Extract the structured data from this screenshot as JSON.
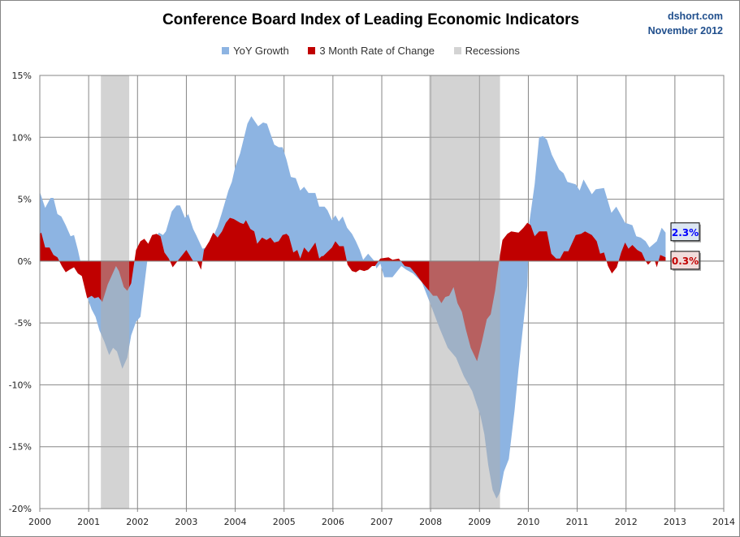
{
  "header": {
    "title": "Conference Board Index of Leading Economic Indicators",
    "source": "dshort.com",
    "date": "November 2012"
  },
  "colors": {
    "yoy": "#8db4e2",
    "rate3m": "#c00000",
    "recession": "#afafaf",
    "grid": "#868686"
  },
  "chart_data": {
    "type": "area",
    "title": "Conference Board Index of Leading Economic Indicators",
    "xlabel": "",
    "ylabel": "",
    "xlim": [
      2000,
      2014
    ],
    "ylim": [
      -20,
      15
    ],
    "grid": true,
    "legend": "top",
    "x_ticks": [
      "2000",
      "2001",
      "2002",
      "2003",
      "2004",
      "2005",
      "2006",
      "2007",
      "2008",
      "2009",
      "2010",
      "2011",
      "2012",
      "2013",
      "2014"
    ],
    "y_ticks": [
      "15%",
      "10%",
      "5%",
      "0%",
      "-5%",
      "-10%",
      "-15%",
      "-20%"
    ],
    "y_tick_values": [
      15,
      10,
      5,
      0,
      -5,
      -10,
      -15,
      -20
    ],
    "recessions": [
      [
        2001.25,
        2001.83
      ],
      [
        2007.97,
        2009.42
      ]
    ],
    "series": [
      {
        "name": "YoY Growth",
        "end_label": "2.3%",
        "points": [
          [
            2000.0,
            5.6
          ],
          [
            2000.11,
            4.3
          ],
          [
            2000.22,
            5.1
          ],
          [
            2000.28,
            5.1
          ],
          [
            2000.36,
            3.8
          ],
          [
            2000.44,
            3.6
          ],
          [
            2000.53,
            2.9
          ],
          [
            2000.63,
            2.0
          ],
          [
            2000.7,
            2.1
          ],
          [
            2000.78,
            0.9
          ],
          [
            2000.83,
            0
          ],
          [
            2000.97,
            -2.9
          ],
          [
            2001.06,
            -3.9
          ],
          [
            2001.14,
            -4.5
          ],
          [
            2001.22,
            -5.6
          ],
          [
            2001.32,
            -6.5
          ],
          [
            2001.42,
            -7.6
          ],
          [
            2001.5,
            -7.0
          ],
          [
            2001.58,
            -7.3
          ],
          [
            2001.69,
            -8.7
          ],
          [
            2001.79,
            -7.8
          ],
          [
            2001.87,
            -6.0
          ],
          [
            2001.97,
            -4.9
          ],
          [
            2002.06,
            -4.5
          ],
          [
            2002.1,
            -3.2
          ],
          [
            2002.2,
            0
          ],
          [
            2002.3,
            1.5
          ],
          [
            2002.44,
            2.3
          ],
          [
            2002.52,
            2.1
          ],
          [
            2002.58,
            2.4
          ],
          [
            2002.7,
            4.0
          ],
          [
            2002.8,
            4.5
          ],
          [
            2002.87,
            4.5
          ],
          [
            2002.97,
            3.5
          ],
          [
            2003.04,
            3.8
          ],
          [
            2003.14,
            2.6
          ],
          [
            2003.2,
            2.1
          ],
          [
            2003.33,
            1.0
          ],
          [
            2003.41,
            1.1
          ],
          [
            2003.53,
            1.8
          ],
          [
            2003.64,
            2.8
          ],
          [
            2003.72,
            3.8
          ],
          [
            2003.86,
            5.7
          ],
          [
            2003.93,
            6.4
          ],
          [
            2004.0,
            7.6
          ],
          [
            2004.1,
            8.7
          ],
          [
            2004.25,
            11.1
          ],
          [
            2004.33,
            11.7
          ],
          [
            2004.47,
            10.9
          ],
          [
            2004.57,
            11.2
          ],
          [
            2004.65,
            11.1
          ],
          [
            2004.72,
            10.3
          ],
          [
            2004.8,
            9.4
          ],
          [
            2004.89,
            9.2
          ],
          [
            2004.97,
            9.2
          ],
          [
            2005.05,
            8.2
          ],
          [
            2005.14,
            6.8
          ],
          [
            2005.24,
            6.7
          ],
          [
            2005.33,
            5.7
          ],
          [
            2005.41,
            6.0
          ],
          [
            2005.5,
            5.5
          ],
          [
            2005.64,
            5.5
          ],
          [
            2005.72,
            4.4
          ],
          [
            2005.83,
            4.4
          ],
          [
            2005.89,
            4.1
          ],
          [
            2005.98,
            3.3
          ],
          [
            2006.05,
            3.7
          ],
          [
            2006.12,
            3.2
          ],
          [
            2006.2,
            3.6
          ],
          [
            2006.29,
            2.7
          ],
          [
            2006.39,
            2.2
          ],
          [
            2006.47,
            1.6
          ],
          [
            2006.55,
            0.9
          ],
          [
            2006.62,
            0.1
          ],
          [
            2006.72,
            0.6
          ],
          [
            2006.85,
            0
          ],
          [
            2006.89,
            -0.6
          ],
          [
            2006.97,
            -0.2
          ],
          [
            2007.05,
            -1.3
          ],
          [
            2007.22,
            -1.3
          ],
          [
            2007.4,
            -0.4
          ],
          [
            2007.5,
            -0.7
          ],
          [
            2007.64,
            -1.0
          ],
          [
            2007.82,
            -1.7
          ],
          [
            2007.97,
            -3.2
          ],
          [
            2008.19,
            -5.5
          ],
          [
            2008.35,
            -7.0
          ],
          [
            2008.52,
            -7.8
          ],
          [
            2008.68,
            -9.3
          ],
          [
            2008.85,
            -10.5
          ],
          [
            2009.02,
            -12.5
          ],
          [
            2009.1,
            -14.0
          ],
          [
            2009.18,
            -16.5
          ],
          [
            2009.27,
            -18.5
          ],
          [
            2009.35,
            -19.2
          ],
          [
            2009.42,
            -18.7
          ],
          [
            2009.5,
            -17.0
          ],
          [
            2009.6,
            -16.0
          ],
          [
            2009.72,
            -12.0
          ],
          [
            2009.8,
            -8.7
          ],
          [
            2009.9,
            -5.0
          ],
          [
            2009.98,
            -2.0
          ],
          [
            2010.02,
            3.1
          ],
          [
            2010.13,
            6.2
          ],
          [
            2010.22,
            10.0
          ],
          [
            2010.3,
            10.1
          ],
          [
            2010.38,
            9.8
          ],
          [
            2010.48,
            8.6
          ],
          [
            2010.63,
            7.4
          ],
          [
            2010.72,
            7.1
          ],
          [
            2010.8,
            6.4
          ],
          [
            2010.97,
            6.2
          ],
          [
            2011.05,
            5.7
          ],
          [
            2011.13,
            6.6
          ],
          [
            2011.3,
            5.4
          ],
          [
            2011.38,
            5.8
          ],
          [
            2011.55,
            5.9
          ],
          [
            2011.7,
            3.9
          ],
          [
            2011.8,
            4.4
          ],
          [
            2011.98,
            3.1
          ],
          [
            2012.13,
            2.9
          ],
          [
            2012.21,
            2.0
          ],
          [
            2012.3,
            1.9
          ],
          [
            2012.4,
            1.6
          ],
          [
            2012.48,
            1.1
          ],
          [
            2012.63,
            1.6
          ],
          [
            2012.73,
            2.7
          ],
          [
            2012.81,
            2.3
          ]
        ]
      },
      {
        "name": "3 Month Rate of Change",
        "end_label": "0.3%",
        "points": [
          [
            2000.0,
            2.2
          ],
          [
            2000.03,
            2.3
          ],
          [
            2000.11,
            1.1
          ],
          [
            2000.2,
            1.1
          ],
          [
            2000.28,
            0.5
          ],
          [
            2000.36,
            0.3
          ],
          [
            2000.45,
            -0.4
          ],
          [
            2000.53,
            -0.9
          ],
          [
            2000.61,
            -0.7
          ],
          [
            2000.7,
            -0.5
          ],
          [
            2000.78,
            -1.0
          ],
          [
            2000.86,
            -1.2
          ],
          [
            2000.97,
            -3.0
          ],
          [
            2001.06,
            -2.8
          ],
          [
            2001.12,
            -3.0
          ],
          [
            2001.2,
            -2.9
          ],
          [
            2001.28,
            -3.3
          ],
          [
            2001.39,
            -1.9
          ],
          [
            2001.56,
            -0.4
          ],
          [
            2001.62,
            -0.8
          ],
          [
            2001.72,
            -2.1
          ],
          [
            2001.79,
            -2.4
          ],
          [
            2001.87,
            -1.8
          ],
          [
            2001.97,
            0.9
          ],
          [
            2002.06,
            1.6
          ],
          [
            2002.14,
            1.8
          ],
          [
            2002.22,
            1.4
          ],
          [
            2002.3,
            2.1
          ],
          [
            2002.39,
            2.2
          ],
          [
            2002.47,
            2.0
          ],
          [
            2002.55,
            0.7
          ],
          [
            2002.64,
            0.2
          ],
          [
            2002.72,
            -0.5
          ],
          [
            2002.8,
            -0.1
          ],
          [
            2002.92,
            0.5
          ],
          [
            2003.0,
            0.9
          ],
          [
            2003.14,
            0
          ],
          [
            2003.22,
            0
          ],
          [
            2003.3,
            -0.7
          ],
          [
            2003.36,
            0.9
          ],
          [
            2003.47,
            1.6
          ],
          [
            2003.55,
            2.3
          ],
          [
            2003.64,
            1.9
          ],
          [
            2003.73,
            2.4
          ],
          [
            2003.81,
            3.1
          ],
          [
            2003.89,
            3.5
          ],
          [
            2003.97,
            3.4
          ],
          [
            2004.1,
            3.1
          ],
          [
            2004.17,
            3.0
          ],
          [
            2004.22,
            3.3
          ],
          [
            2004.31,
            2.6
          ],
          [
            2004.39,
            2.4
          ],
          [
            2004.45,
            1.4
          ],
          [
            2004.55,
            1.9
          ],
          [
            2004.64,
            1.7
          ],
          [
            2004.72,
            1.9
          ],
          [
            2004.8,
            1.5
          ],
          [
            2004.89,
            1.6
          ],
          [
            2004.97,
            2.1
          ],
          [
            2005.05,
            2.2
          ],
          [
            2005.1,
            2.0
          ],
          [
            2005.19,
            0.7
          ],
          [
            2005.27,
            0.9
          ],
          [
            2005.33,
            0.2
          ],
          [
            2005.41,
            1.1
          ],
          [
            2005.5,
            0.7
          ],
          [
            2005.64,
            1.5
          ],
          [
            2005.72,
            0.2
          ],
          [
            2005.77,
            0.4
          ],
          [
            2005.8,
            0.4
          ],
          [
            2005.98,
            1.1
          ],
          [
            2006.05,
            1.6
          ],
          [
            2006.13,
            1.2
          ],
          [
            2006.22,
            1.2
          ],
          [
            2006.3,
            -0.3
          ],
          [
            2006.39,
            -0.8
          ],
          [
            2006.47,
            -0.9
          ],
          [
            2006.55,
            -0.7
          ],
          [
            2006.64,
            -0.8
          ],
          [
            2006.72,
            -0.7
          ],
          [
            2006.8,
            -0.4
          ],
          [
            2006.86,
            -0.4
          ],
          [
            2006.97,
            0.2
          ],
          [
            2007.14,
            0.3
          ],
          [
            2007.22,
            0.1
          ],
          [
            2007.35,
            0.2
          ],
          [
            2007.47,
            -0.4
          ],
          [
            2007.58,
            -0.5
          ],
          [
            2007.69,
            -1.0
          ],
          [
            2007.82,
            -1.7
          ],
          [
            2007.97,
            -2.4
          ],
          [
            2008.05,
            -2.8
          ],
          [
            2008.13,
            -2.8
          ],
          [
            2008.22,
            -3.4
          ],
          [
            2008.3,
            -2.9
          ],
          [
            2008.38,
            -2.8
          ],
          [
            2008.47,
            -2.1
          ],
          [
            2008.55,
            -3.4
          ],
          [
            2008.64,
            -4.1
          ],
          [
            2008.72,
            -5.5
          ],
          [
            2008.82,
            -7.0
          ],
          [
            2008.95,
            -8.1
          ],
          [
            2009.05,
            -6.5
          ],
          [
            2009.15,
            -4.7
          ],
          [
            2009.23,
            -4.3
          ],
          [
            2009.32,
            -2.4
          ],
          [
            2009.4,
            0
          ],
          [
            2009.47,
            1.7
          ],
          [
            2009.57,
            2.2
          ],
          [
            2009.65,
            2.4
          ],
          [
            2009.8,
            2.3
          ],
          [
            2009.9,
            2.7
          ],
          [
            2009.98,
            3.1
          ],
          [
            2010.05,
            2.9
          ],
          [
            2010.13,
            2.0
          ],
          [
            2010.22,
            2.4
          ],
          [
            2010.38,
            2.4
          ],
          [
            2010.47,
            0.6
          ],
          [
            2010.57,
            0.2
          ],
          [
            2010.65,
            0.2
          ],
          [
            2010.73,
            0.8
          ],
          [
            2010.82,
            0.8
          ],
          [
            2010.97,
            2.1
          ],
          [
            2011.08,
            2.2
          ],
          [
            2011.16,
            2.4
          ],
          [
            2011.3,
            2.1
          ],
          [
            2011.4,
            1.6
          ],
          [
            2011.47,
            0.6
          ],
          [
            2011.55,
            0.7
          ],
          [
            2011.63,
            -0.4
          ],
          [
            2011.71,
            -1.0
          ],
          [
            2011.81,
            -0.5
          ],
          [
            2011.9,
            0.7
          ],
          [
            2011.98,
            1.5
          ],
          [
            2012.05,
            1.0
          ],
          [
            2012.13,
            1.3
          ],
          [
            2012.23,
            0.9
          ],
          [
            2012.32,
            0.7
          ],
          [
            2012.4,
            0
          ],
          [
            2012.45,
            -0.3
          ],
          [
            2012.52,
            0
          ],
          [
            2012.59,
            0
          ],
          [
            2012.63,
            -0.5
          ],
          [
            2012.7,
            0.5
          ],
          [
            2012.81,
            0.3
          ]
        ]
      }
    ]
  },
  "legend": {
    "items": [
      "YoY Growth",
      "3 Month Rate of Change",
      "Recessions"
    ]
  }
}
